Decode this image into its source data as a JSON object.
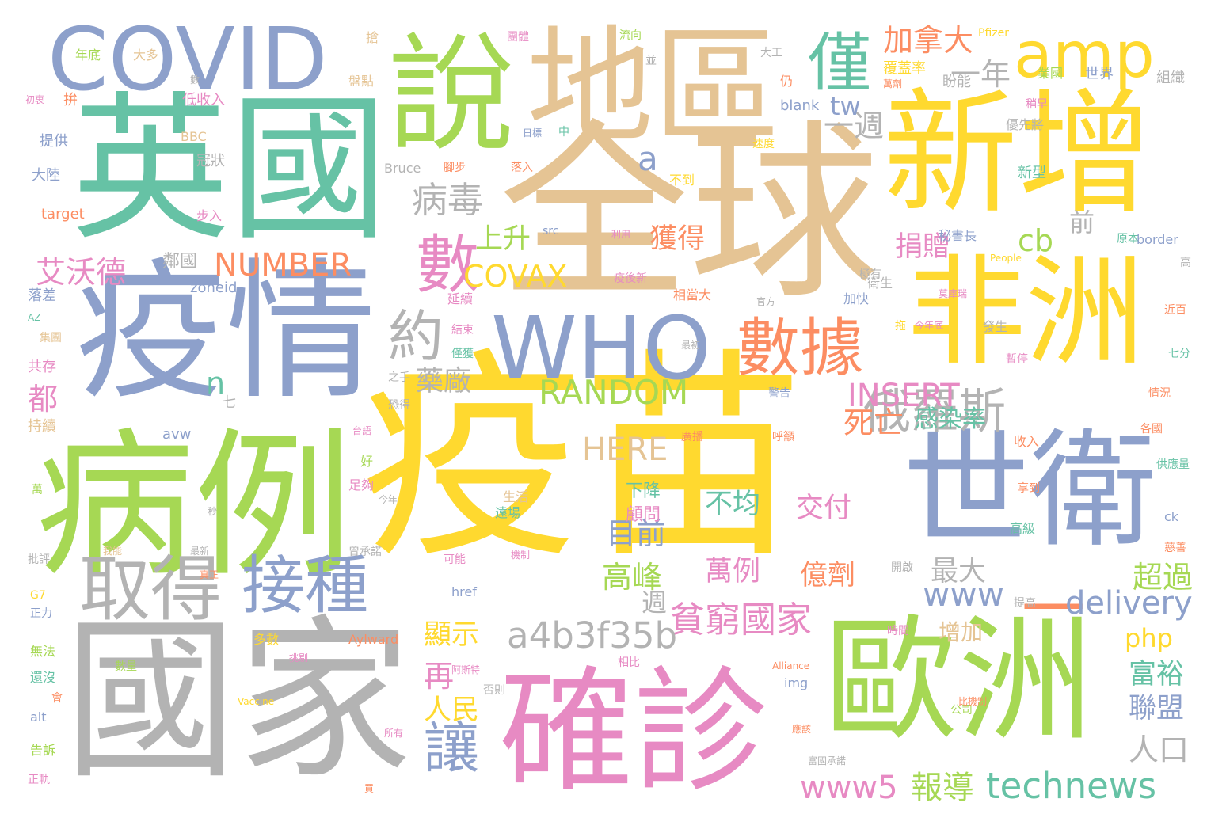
{
  "palette": {
    "green": "#66c2a5",
    "orange": "#fc8d62",
    "blue": "#8da0cb",
    "pink": "#e78ac3",
    "lime": "#a6d854",
    "yellow": "#ffd92f",
    "tan": "#e5c494",
    "gray": "#b3b3b3"
  },
  "words": [
    {
      "text": "疫苗",
      "color": "yellow"
    },
    {
      "text": "全球",
      "color": "tan"
    },
    {
      "text": "國家",
      "color": "gray"
    },
    {
      "text": "英國",
      "color": "green"
    },
    {
      "text": "疫情",
      "color": "blue"
    },
    {
      "text": "病例",
      "color": "lime"
    },
    {
      "text": "新增",
      "color": "yellow"
    },
    {
      "text": "確診",
      "color": "pink"
    },
    {
      "text": "歐洲",
      "color": "lime"
    },
    {
      "text": "地區",
      "color": "tan"
    },
    {
      "text": "世衛",
      "color": "blue"
    },
    {
      "text": "非洲",
      "color": "yellow"
    },
    {
      "text": "說",
      "color": "lime"
    },
    {
      "text": "WHO",
      "color": "blue"
    },
    {
      "text": "COVID",
      "color": "blue"
    },
    {
      "text": "amp",
      "color": "yellow"
    },
    {
      "text": "數據",
      "color": "orange"
    },
    {
      "text": "取得",
      "color": "gray"
    },
    {
      "text": "接種",
      "color": "blue"
    },
    {
      "text": "數",
      "color": "pink"
    },
    {
      "text": "約",
      "color": "gray"
    },
    {
      "text": "僅",
      "color": "green"
    },
    {
      "text": "一",
      "color": "orange"
    },
    {
      "text": "俄羅斯",
      "color": "gray"
    },
    {
      "text": "貧窮國家",
      "color": "pink"
    },
    {
      "text": "technews",
      "color": "green"
    },
    {
      "text": "a4b3f35b",
      "color": "gray"
    },
    {
      "text": "病毒",
      "color": "gray"
    },
    {
      "text": "讓",
      "color": "blue"
    },
    {
      "text": "RANDOM",
      "color": "lime"
    },
    {
      "text": "NUMBER",
      "color": "orange"
    },
    {
      "text": "INSERT",
      "color": "pink"
    },
    {
      "text": "HERE",
      "color": "tan"
    },
    {
      "text": "COVAX",
      "color": "yellow"
    },
    {
      "text": "delivery",
      "color": "blue"
    },
    {
      "text": "www",
      "color": "blue"
    },
    {
      "text": "www5",
      "color": "pink"
    },
    {
      "text": "報導",
      "color": "lime"
    },
    {
      "text": "高峰",
      "color": "lime"
    },
    {
      "text": "目前",
      "color": "blue"
    },
    {
      "text": "最大",
      "color": "gray"
    },
    {
      "text": "超過",
      "color": "lime"
    },
    {
      "text": "艾沃德",
      "color": "pink"
    },
    {
      "text": "加拿大",
      "color": "orange"
    },
    {
      "text": "一年",
      "color": "gray"
    },
    {
      "text": "一週",
      "color": "gray"
    },
    {
      "text": "tw",
      "color": "blue"
    },
    {
      "text": "a",
      "color": "blue"
    },
    {
      "text": "捐贈",
      "color": "pink"
    },
    {
      "text": "cb",
      "color": "lime"
    },
    {
      "text": "獲得",
      "color": "orange"
    },
    {
      "text": "上升",
      "color": "lime"
    },
    {
      "text": "前",
      "color": "gray"
    },
    {
      "text": "藥廠",
      "color": "gray"
    },
    {
      "text": "都",
      "color": "pink"
    },
    {
      "text": "n",
      "color": "green"
    },
    {
      "text": "感染率",
      "color": "green"
    },
    {
      "text": "死亡",
      "color": "orange"
    },
    {
      "text": "不均",
      "color": "green"
    },
    {
      "text": "交付",
      "color": "pink"
    },
    {
      "text": "萬例",
      "color": "pink"
    },
    {
      "text": "億劑",
      "color": "orange"
    },
    {
      "text": "顯示",
      "color": "yellow"
    },
    {
      "text": "再",
      "color": "pink"
    },
    {
      "text": "人民",
      "color": "yellow"
    },
    {
      "text": "php",
      "color": "yellow"
    },
    {
      "text": "富裕",
      "color": "green"
    },
    {
      "text": "聯盟",
      "color": "blue"
    },
    {
      "text": "人口",
      "color": "gray"
    },
    {
      "text": "增加",
      "color": "tan"
    },
    {
      "text": "下降",
      "color": "green"
    },
    {
      "text": "顧問",
      "color": "pink"
    },
    {
      "text": "週",
      "color": "gray"
    },
    {
      "text": "鄰國",
      "color": "gray"
    },
    {
      "text": "zoneid",
      "color": "blue"
    },
    {
      "text": "落差",
      "color": "blue"
    },
    {
      "text": "共存",
      "color": "pink"
    },
    {
      "text": "持續",
      "color": "tan"
    },
    {
      "text": "avw",
      "color": "blue"
    },
    {
      "text": "冠狀",
      "color": "gray"
    },
    {
      "text": "大陸",
      "color": "blue"
    },
    {
      "text": "target",
      "color": "orange"
    },
    {
      "text": "步入",
      "color": "pink"
    },
    {
      "text": "年底",
      "color": "lime"
    },
    {
      "text": "大多",
      "color": "tan"
    },
    {
      "text": "拚",
      "color": "orange"
    },
    {
      "text": "低收入",
      "color": "pink"
    },
    {
      "text": "提供",
      "color": "blue"
    },
    {
      "text": "BBC",
      "color": "tan"
    },
    {
      "text": "搶",
      "color": "tan"
    },
    {
      "text": "盤點",
      "color": "tan"
    },
    {
      "text": "團體",
      "color": "pink"
    },
    {
      "text": "流向",
      "color": "lime"
    },
    {
      "text": "Pfizer",
      "color": "yellow"
    },
    {
      "text": "覆蓋率",
      "color": "yellow"
    },
    {
      "text": "萬劑",
      "color": "orange"
    },
    {
      "text": "業國",
      "color": "lime"
    },
    {
      "text": "世界",
      "color": "blue"
    },
    {
      "text": "組織",
      "color": "gray"
    },
    {
      "text": "盼能",
      "color": "gray"
    },
    {
      "text": "blank",
      "color": "blue"
    },
    {
      "text": "大工",
      "color": "gray"
    },
    {
      "text": "仍",
      "color": "orange"
    },
    {
      "text": "並",
      "color": "gray"
    },
    {
      "text": "數",
      "color": "gray"
    },
    {
      "text": "稍早",
      "color": "pink"
    },
    {
      "text": "優先將",
      "color": "gray"
    },
    {
      "text": "新型",
      "color": "green"
    },
    {
      "text": "速度",
      "color": "yellow"
    },
    {
      "text": "不到",
      "color": "yellow"
    },
    {
      "text": "Bruce",
      "color": "gray"
    },
    {
      "text": "腳步",
      "color": "orange"
    },
    {
      "text": "落入",
      "color": "orange"
    },
    {
      "text": "秘書長",
      "color": "blue"
    },
    {
      "text": "原本",
      "color": "green"
    },
    {
      "text": "border",
      "color": "blue"
    },
    {
      "text": "疫後新",
      "color": "pink"
    },
    {
      "text": "相當大",
      "color": "orange"
    },
    {
      "text": "延續",
      "color": "pink"
    },
    {
      "text": "官方",
      "color": "gray"
    },
    {
      "text": "加快",
      "color": "blue"
    },
    {
      "text": "衛生",
      "color": "gray"
    },
    {
      "text": "極有",
      "color": "gray"
    },
    {
      "text": "莫庫瑞",
      "color": "pink"
    },
    {
      "text": "結束",
      "color": "pink"
    },
    {
      "text": "僅獲",
      "color": "green"
    },
    {
      "text": "警告",
      "color": "blue"
    },
    {
      "text": "發生",
      "color": "gray"
    },
    {
      "text": "情況",
      "color": "orange"
    },
    {
      "text": "暫停",
      "color": "pink"
    },
    {
      "text": "收入",
      "color": "orange"
    },
    {
      "text": "各國",
      "color": "orange"
    },
    {
      "text": "供應量",
      "color": "green"
    },
    {
      "text": "廣播",
      "color": "orange"
    },
    {
      "text": "呼籲",
      "color": "orange"
    },
    {
      "text": "src",
      "color": "blue"
    },
    {
      "text": "利用",
      "color": "pink"
    },
    {
      "text": "生活",
      "color": "tan"
    },
    {
      "text": "遠場",
      "color": "green"
    },
    {
      "text": "足夠",
      "color": "pink"
    },
    {
      "text": "今年",
      "color": "gray"
    },
    {
      "text": "好",
      "color": "lime"
    },
    {
      "text": "台語",
      "color": "pink"
    },
    {
      "text": "高級",
      "color": "green"
    },
    {
      "text": "ck",
      "color": "blue"
    },
    {
      "text": "享到",
      "color": "orange"
    },
    {
      "text": "慈善",
      "color": "orange"
    },
    {
      "text": "時間",
      "color": "pink"
    },
    {
      "text": "提高",
      "color": "gray"
    },
    {
      "text": "開啟",
      "color": "gray"
    },
    {
      "text": "href",
      "color": "blue"
    },
    {
      "text": "可能",
      "color": "pink"
    },
    {
      "text": "機制",
      "color": "pink"
    },
    {
      "text": "曾承諾",
      "color": "gray"
    },
    {
      "text": "最新",
      "color": "gray"
    },
    {
      "text": "我能",
      "color": "tan"
    },
    {
      "text": "批評",
      "color": "gray"
    },
    {
      "text": "G7",
      "color": "yellow"
    },
    {
      "text": "正力",
      "color": "blue"
    },
    {
      "text": "多數",
      "color": "yellow"
    },
    {
      "text": "Aylward",
      "color": "orange"
    },
    {
      "text": "無法",
      "color": "lime"
    },
    {
      "text": "還沒",
      "color": "green"
    },
    {
      "text": "數量",
      "color": "lime"
    },
    {
      "text": "alt",
      "color": "blue"
    },
    {
      "text": "告訴",
      "color": "lime"
    },
    {
      "text": "正軌",
      "color": "pink"
    },
    {
      "text": "Vaccine",
      "color": "yellow"
    },
    {
      "text": "相比",
      "color": "pink"
    },
    {
      "text": "阿斯特",
      "color": "pink"
    },
    {
      "text": "否則",
      "color": "gray"
    },
    {
      "text": "所有",
      "color": "pink"
    },
    {
      "text": "買",
      "color": "orange"
    },
    {
      "text": "img",
      "color": "blue"
    },
    {
      "text": "公司",
      "color": "lime"
    },
    {
      "text": "比機制",
      "color": "orange"
    },
    {
      "text": "應該",
      "color": "orange"
    },
    {
      "text": "富國承諾",
      "color": "gray"
    },
    {
      "text": "Alliance",
      "color": "orange"
    },
    {
      "text": "恐得",
      "color": "gray"
    },
    {
      "text": "之手",
      "color": "gray"
    },
    {
      "text": "七",
      "color": "gray"
    },
    {
      "text": "中",
      "color": "green"
    },
    {
      "text": "日標",
      "color": "blue"
    },
    {
      "text": "People",
      "color": "yellow"
    },
    {
      "text": "今年底",
      "color": "pink"
    },
    {
      "text": "拖",
      "color": "yellow"
    },
    {
      "text": "七分",
      "color": "green"
    },
    {
      "text": "近百",
      "color": "orange"
    },
    {
      "text": "AZ",
      "color": "green"
    },
    {
      "text": "集團",
      "color": "tan"
    },
    {
      "text": "萬",
      "color": "lime"
    },
    {
      "text": "秒",
      "color": "gray"
    },
    {
      "text": "會",
      "color": "orange"
    },
    {
      "text": "高",
      "color": "gray"
    },
    {
      "text": "真正",
      "color": "orange"
    },
    {
      "text": "挑剔",
      "color": "pink"
    },
    {
      "text": "最初",
      "color": "gray"
    },
    {
      "text": "初衷",
      "color": "pink"
    }
  ]
}
